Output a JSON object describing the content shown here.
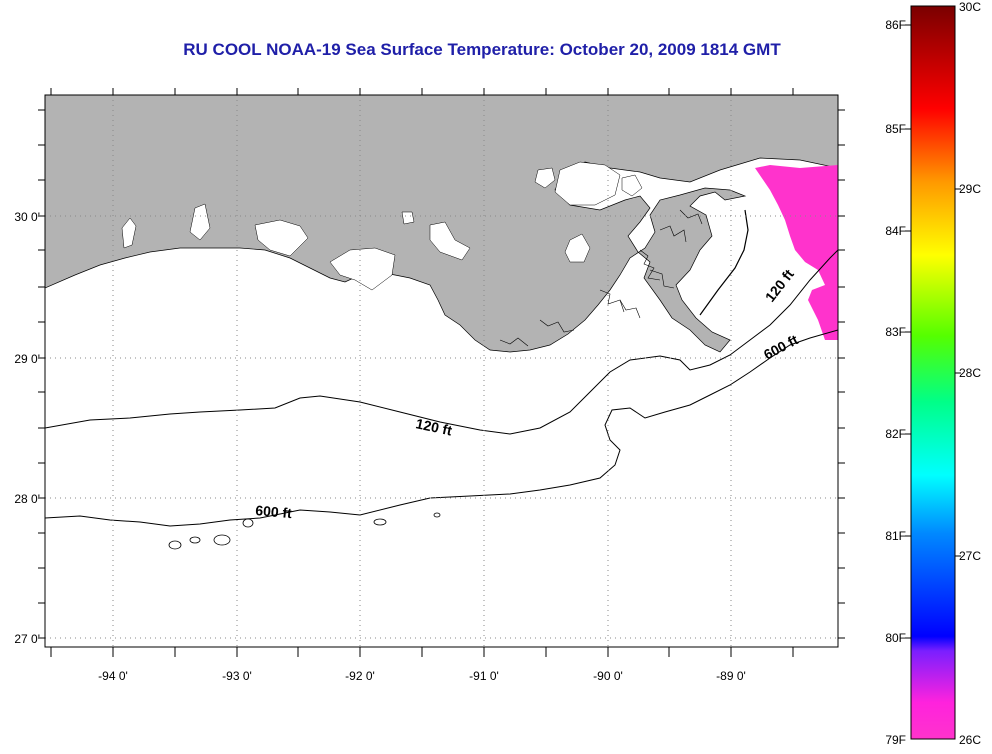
{
  "title": "RU COOL  NOAA-19  Sea Surface Temperature:  October 20, 2009 1814 GMT",
  "map": {
    "lat_labels": [
      "30 0'",
      "29 0'",
      "28 0'",
      "27 0'"
    ],
    "lon_labels": [
      "-94 0'",
      "-93 0'",
      "-92 0'",
      "-91 0'",
      "-90 0'",
      "-89 0'"
    ],
    "contour_labels": [
      {
        "text": "120 ft",
        "id": "120-ft-west"
      },
      {
        "text": "600 ft",
        "id": "600-ft-west"
      },
      {
        "text": "120 ft",
        "id": "120-ft-east"
      },
      {
        "text": "600 ft",
        "id": "600-ft-east"
      }
    ],
    "colors": {
      "land": "#b3b3b3",
      "sst_patch": "#ff33cc",
      "title": "#1f1fa8"
    }
  },
  "colorbar": {
    "f_labels": [
      "86F",
      "85F",
      "84F",
      "83F",
      "82F",
      "81F",
      "80F",
      "79F"
    ],
    "c_labels": [
      "30C",
      "29C",
      "28C",
      "27C",
      "26C"
    ],
    "c_range": [
      26,
      30
    ],
    "stops": [
      "#ff33cc",
      "#ff33cc",
      "#7a1fff",
      "#0000ff",
      "#0088ff",
      "#00ffff",
      "#00ff88",
      "#66ff00",
      "#ffff00",
      "#ff9900",
      "#ff0000",
      "#800000"
    ]
  }
}
